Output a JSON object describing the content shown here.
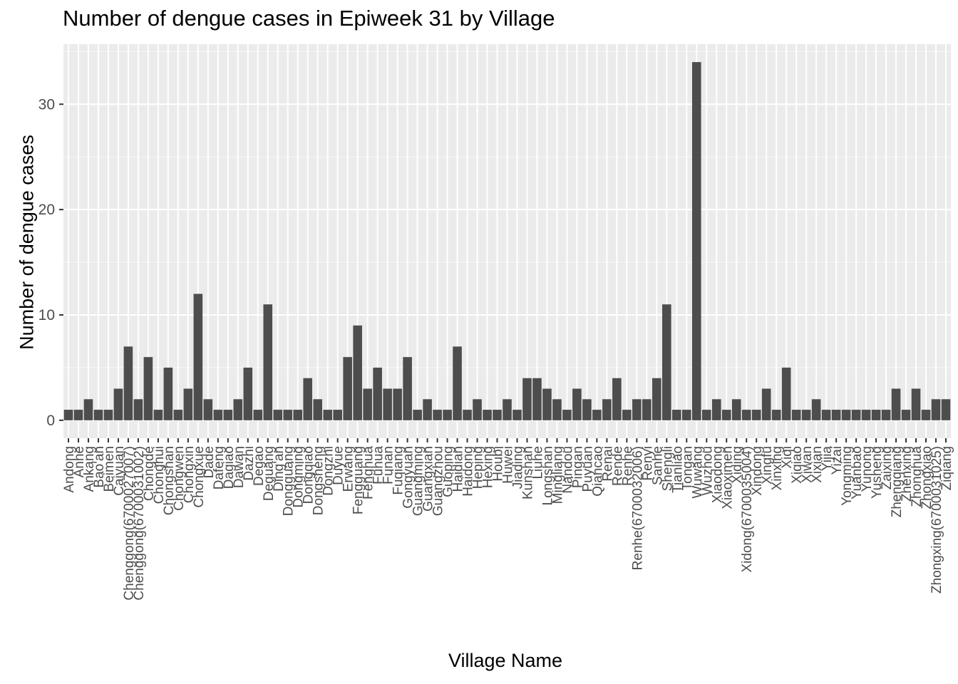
{
  "chart_data": {
    "type": "bar",
    "title": "Number of dengue cases in Epiweek 31 by Village",
    "xlabel": "Village Name",
    "ylabel": "Number of dengue cases",
    "ylim": [
      -1.7,
      35.7
    ],
    "y_ticks": [
      0,
      10,
      20,
      30
    ],
    "grid": true,
    "legend": "none",
    "colors": {
      "panel": "#EBEBEB",
      "grid": "#FFFFFF",
      "bar": "#4D4D4D",
      "tick_text": "#4D4D4D",
      "tick": "#333333"
    },
    "categories": [
      "Andong",
      "Anhe",
      "Ankang",
      "Bao'an",
      "Beimen",
      "Caiyuan",
      "Chenggong(6700027007)",
      "Chenggong(6700031002)",
      "Chongde",
      "Chonghui",
      "Chongshan",
      "Chongwen",
      "Chongxin",
      "Chongxue",
      "Dade",
      "Dafeng",
      "Dagiao",
      "Dawan",
      "Dazhi",
      "Degao",
      "Deguang",
      "Ding'an",
      "Dongguang",
      "Dongming",
      "Dongqiao",
      "Dongsheng",
      "Dongzhi",
      "Duyue",
      "Erwang",
      "Fengguang",
      "Fenghua",
      "Fuhua",
      "Funan",
      "Fuqiang",
      "Gongyuan",
      "Guangming",
      "Guangxian",
      "Guangzhou",
      "Guoping",
      "Haidian",
      "Haidong",
      "Heping",
      "Hexing",
      "Houbi",
      "Huwei",
      "Jiading",
      "Kunshan",
      "Liuhe",
      "Longshan",
      "Mingliang",
      "Nandou",
      "Pingan",
      "Puyuan",
      "Qiancao",
      "Renai",
      "Rende",
      "Renhe",
      "Renhe(6700032006)",
      "Renyi",
      "Sanhe",
      "Shengli",
      "Tianliao",
      "Tongan",
      "Wuwang",
      "Wuzhou",
      "Xiaodong",
      "Xiaoximen",
      "Xiding",
      "Xidong(6700035004)",
      "Xindong",
      "Xingfu",
      "Xinxing",
      "Xiqi",
      "Xiqiao",
      "Xiwan",
      "Xixian",
      "Yijia",
      "Yizai",
      "Yongming",
      "Yuanbao",
      "Yunong",
      "Yusheng",
      "Zaixing",
      "Zhengqiang",
      "Zhenxing",
      "Zhonghua",
      "Zhongxiao",
      "Zhongxing(6700031025)",
      "Ziqiang"
    ],
    "values": [
      1,
      1,
      2,
      1,
      1,
      3,
      7,
      2,
      6,
      1,
      5,
      1,
      3,
      12,
      2,
      1,
      1,
      2,
      5,
      1,
      11,
      1,
      1,
      1,
      4,
      2,
      1,
      1,
      6,
      9,
      3,
      5,
      3,
      3,
      6,
      1,
      2,
      1,
      1,
      7,
      1,
      2,
      1,
      1,
      2,
      1,
      4,
      4,
      3,
      2,
      1,
      3,
      2,
      1,
      2,
      4,
      1,
      2,
      2,
      4,
      11,
      1,
      1,
      34,
      1,
      2,
      1,
      2,
      1,
      1,
      3,
      1,
      5,
      1,
      1,
      2,
      1,
      1,
      1,
      1,
      1,
      1,
      1,
      3,
      1,
      3,
      1,
      2,
      2
    ]
  }
}
